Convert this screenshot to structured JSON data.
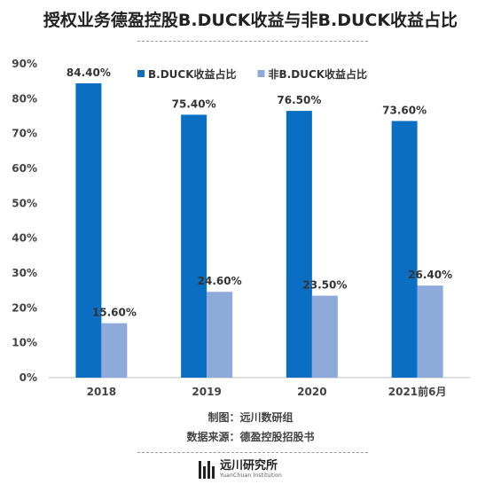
{
  "title": "授权业务德盈控股B.DUCK收益与非B.DUCK收益占比",
  "footer": {
    "made_by": "制图：远川数研组",
    "source": "数据来源：德盈控股招股书"
  },
  "logo": {
    "name": "远川研究所",
    "subtitle": "YuanChuan Institution"
  },
  "chart_data": {
    "type": "bar",
    "categories": [
      "2018",
      "2019",
      "2020",
      "2021前6月"
    ],
    "series": [
      {
        "name": "B.DUCK收益占比",
        "values": [
          84.4,
          75.4,
          76.5,
          73.6
        ],
        "labels": [
          "84.40%",
          "75.40%",
          "76.50%",
          "73.60%"
        ],
        "color": "#0a6fc2"
      },
      {
        "name": "非B.DUCK收益占比",
        "values": [
          15.6,
          24.6,
          23.5,
          26.4
        ],
        "labels": [
          "15.60%",
          "24.60%",
          "23.50%",
          "26.40%"
        ],
        "color": "#8eaadb"
      }
    ],
    "ylim": [
      0,
      90
    ],
    "yticks": [
      "0%",
      "10%",
      "20%",
      "30%",
      "40%",
      "50%",
      "60%",
      "70%",
      "80%",
      "90%"
    ],
    "legend": "top-right",
    "grid": false
  }
}
